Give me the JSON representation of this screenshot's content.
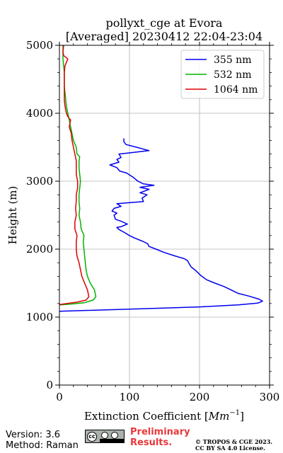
{
  "chart_data": {
    "type": "line",
    "title": "pollyxt_cge at Evora",
    "subtitle": "[Averaged] 20230412 22:04-23:04",
    "xlabel": "Extinction Coefficient [",
    "xlabel_unit": "Mm",
    "xlabel_exp": "−1",
    "xlabel_close": "]",
    "ylabel": "Height (m)",
    "xlim": [
      0,
      300
    ],
    "ylim": [
      0,
      5000
    ],
    "xticks": [
      0,
      100,
      200,
      300
    ],
    "xtick_labels": [
      "0",
      "100",
      "200",
      "300"
    ],
    "yticks": [
      0,
      1000,
      2000,
      3000,
      4000,
      5000
    ],
    "ytick_labels": [
      "0",
      "1000",
      "2000",
      "3000",
      "4000",
      "5000"
    ],
    "grid": true,
    "legend_position": "top-right",
    "series": [
      {
        "name": "355 nm",
        "color": "#0000ee",
        "points": [
          [
            0,
            1085
          ],
          [
            200,
            1150
          ],
          [
            255,
            1180
          ],
          [
            283,
            1205
          ],
          [
            290,
            1235
          ],
          [
            285,
            1265
          ],
          [
            270,
            1310
          ],
          [
            255,
            1350
          ],
          [
            245,
            1400
          ],
          [
            235,
            1450
          ],
          [
            222,
            1500
          ],
          [
            210,
            1550
          ],
          [
            202,
            1610
          ],
          [
            195,
            1680
          ],
          [
            188,
            1740
          ],
          [
            185,
            1790
          ],
          [
            183,
            1830
          ],
          [
            178,
            1860
          ],
          [
            165,
            1900
          ],
          [
            150,
            1950
          ],
          [
            138,
            2000
          ],
          [
            128,
            2040
          ],
          [
            126,
            2080
          ],
          [
            118,
            2120
          ],
          [
            108,
            2160
          ],
          [
            100,
            2200
          ],
          [
            92,
            2250
          ],
          [
            85,
            2290
          ],
          [
            82,
            2320
          ],
          [
            88,
            2330
          ],
          [
            97,
            2370
          ],
          [
            88,
            2410
          ],
          [
            80,
            2440
          ],
          [
            78,
            2500
          ],
          [
            82,
            2530
          ],
          [
            75,
            2560
          ],
          [
            78,
            2600
          ],
          [
            88,
            2630
          ],
          [
            82,
            2670
          ],
          [
            120,
            2700
          ],
          [
            118,
            2750
          ],
          [
            125,
            2800
          ],
          [
            115,
            2830
          ],
          [
            128,
            2880
          ],
          [
            115,
            2910
          ],
          [
            135,
            2940
          ],
          [
            120,
            2960
          ],
          [
            112,
            3000
          ],
          [
            105,
            3060
          ],
          [
            96,
            3120
          ],
          [
            86,
            3150
          ],
          [
            82,
            3200
          ],
          [
            72,
            3240
          ],
          [
            85,
            3280
          ],
          [
            82,
            3320
          ],
          [
            88,
            3350
          ],
          [
            85,
            3400
          ],
          [
            102,
            3420
          ],
          [
            128,
            3450
          ],
          [
            110,
            3500
          ],
          [
            95,
            3540
          ],
          [
            92,
            3580
          ],
          [
            92,
            3630
          ]
        ]
      },
      {
        "name": "532 nm",
        "color": "#00b300",
        "points": [
          [
            0,
            1180
          ],
          [
            15,
            1190
          ],
          [
            35,
            1210
          ],
          [
            48,
            1250
          ],
          [
            52,
            1300
          ],
          [
            50,
            1400
          ],
          [
            44,
            1500
          ],
          [
            40,
            1600
          ],
          [
            38,
            1700
          ],
          [
            37,
            1800
          ],
          [
            36,
            1900
          ],
          [
            35,
            2000
          ],
          [
            34,
            2100
          ],
          [
            35,
            2200
          ],
          [
            31,
            2300
          ],
          [
            30,
            2400
          ],
          [
            28,
            2500
          ],
          [
            29,
            2600
          ],
          [
            28,
            2700
          ],
          [
            28,
            2800
          ],
          [
            29,
            2900
          ],
          [
            30,
            3000
          ],
          [
            29,
            3100
          ],
          [
            28,
            3200
          ],
          [
            28,
            3300
          ],
          [
            29,
            3360
          ],
          [
            25,
            3400
          ],
          [
            24,
            3500
          ],
          [
            20,
            3600
          ],
          [
            18,
            3700
          ],
          [
            16,
            3800
          ],
          [
            14,
            3900
          ],
          [
            12,
            4000
          ],
          [
            10,
            4100
          ],
          [
            9,
            4200
          ],
          [
            8,
            4300
          ],
          [
            7,
            4400
          ],
          [
            7,
            4500
          ],
          [
            7,
            4600
          ],
          [
            6,
            4700
          ],
          [
            5,
            4800
          ],
          [
            5,
            4900
          ],
          [
            5,
            5000
          ]
        ]
      },
      {
        "name": "1064 nm",
        "color": "#dd0000",
        "points": [
          [
            0,
            1185
          ],
          [
            25,
            1220
          ],
          [
            38,
            1250
          ],
          [
            42,
            1300
          ],
          [
            40,
            1400
          ],
          [
            36,
            1500
          ],
          [
            32,
            1600
          ],
          [
            30,
            1700
          ],
          [
            28,
            1800
          ],
          [
            25,
            1900
          ],
          [
            24,
            2000
          ],
          [
            24,
            2100
          ],
          [
            25,
            2200
          ],
          [
            22,
            2300
          ],
          [
            22,
            2400
          ],
          [
            24,
            2500
          ],
          [
            23,
            2600
          ],
          [
            24,
            2700
          ],
          [
            24,
            2800
          ],
          [
            26,
            2900
          ],
          [
            26,
            3000
          ],
          [
            24,
            3100
          ],
          [
            24,
            3200
          ],
          [
            24,
            3300
          ],
          [
            22,
            3400
          ],
          [
            20,
            3500
          ],
          [
            18,
            3600
          ],
          [
            17,
            3700
          ],
          [
            14,
            3800
          ],
          [
            15,
            3850
          ],
          [
            16,
            3900
          ],
          [
            12,
            3950
          ],
          [
            10,
            4000
          ],
          [
            8,
            4100
          ],
          [
            7,
            4200
          ],
          [
            7,
            4300
          ],
          [
            7,
            4400
          ],
          [
            7,
            4500
          ],
          [
            7,
            4600
          ],
          [
            8,
            4700
          ],
          [
            12,
            4800
          ],
          [
            6,
            4850
          ],
          [
            5,
            4900
          ],
          [
            6,
            5000
          ]
        ]
      }
    ]
  },
  "footer": {
    "version": "Version: 3.6",
    "method": "Method: Raman",
    "cc_badge": "cc",
    "preliminary_line1": "Preliminary",
    "preliminary_line2": "Results.",
    "copyright_line1": "© TROPOS & CGE 2023.",
    "copyright_line2": "CC BY SA 4.0 License."
  }
}
